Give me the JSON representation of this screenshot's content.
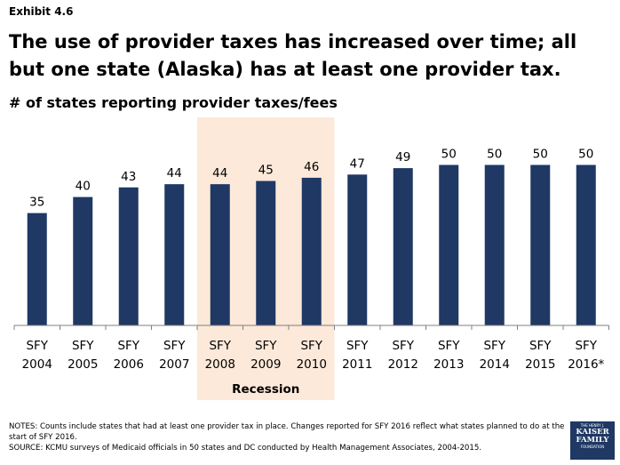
{
  "header": {
    "exhibit": "Exhibit 4.6",
    "title": "The use of provider taxes has increased over time; all but one state (Alaska) has at least one provider tax.",
    "subtitle": "# of states reporting provider taxes/fees"
  },
  "chart_data": {
    "type": "bar",
    "categories": [
      [
        "SFY",
        "2004"
      ],
      [
        "SFY",
        "2005"
      ],
      [
        "SFY",
        "2006"
      ],
      [
        "SFY",
        "2007"
      ],
      [
        "SFY",
        "2008"
      ],
      [
        "SFY",
        "2009"
      ],
      [
        "SFY",
        "2010"
      ],
      [
        "SFY",
        "2011"
      ],
      [
        "SFY",
        "2012"
      ],
      [
        "SFY",
        "2013"
      ],
      [
        "SFY",
        "2014"
      ],
      [
        "SFY",
        "2015"
      ],
      [
        "SFY",
        "2016*"
      ]
    ],
    "values": [
      35,
      40,
      43,
      44,
      44,
      45,
      46,
      47,
      49,
      50,
      50,
      50,
      50
    ],
    "ylim": [
      0,
      50
    ],
    "grid": false,
    "highlight": {
      "label": "Recession",
      "from_index": 4,
      "to_index": 6
    },
    "colors": {
      "bar": "#1f3864",
      "highlight": "#fde9d9",
      "axis": "#808080"
    }
  },
  "footer": {
    "notes": "NOTES: Counts include states that had at least one provider tax in place. Changes reported for SFY 2016 reflect what states planned to do at the start of SFY 2016.",
    "source": "SOURCE: KCMU surveys of Medicaid officials in 50 states and DC conducted by Health Management Associates, 2004-2015."
  },
  "logo": {
    "line1": "THE HENRY J.",
    "line2": "KAISER",
    "line3": "FAMILY",
    "line4": "FOUNDATION"
  }
}
